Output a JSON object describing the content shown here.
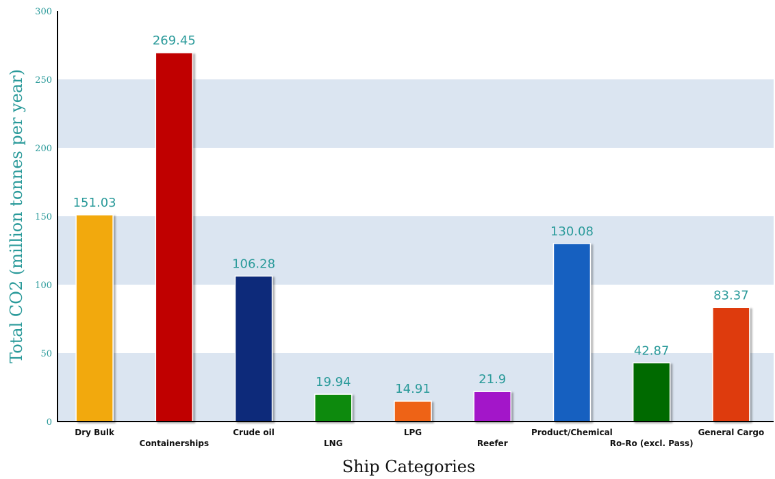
{
  "chart_data": {
    "type": "bar",
    "title": "",
    "xlabel": "Ship Categories",
    "ylabel": "Total CO2 (million tonnes per year)",
    "ylim": [
      0,
      300
    ],
    "yticks": [
      0,
      50,
      100,
      150,
      200,
      250,
      300
    ],
    "grid": "alternating horizontal bands",
    "legend": "none",
    "categories": [
      "Dry Bulk",
      "Containerships",
      "Crude oil",
      "LNG",
      "LPG",
      "Reefer",
      "Product/Chemical",
      "Ro-Ro (excl. Pass)",
      "General Cargo"
    ],
    "values": [
      151.03,
      269.45,
      106.28,
      19.94,
      14.91,
      21.9,
      130.08,
      42.87,
      83.37
    ],
    "value_labels": [
      "151.03",
      "269.45",
      "106.28",
      "19.94",
      "14.91",
      "21.9",
      "130.08",
      "42.87",
      "83.37"
    ],
    "colors": [
      "#f2a90f",
      "#c00000",
      "#0a2a7a",
      "#0b8a0b",
      "#ee6315",
      "#a313c9",
      "#1460c0",
      "#006a00",
      "#de3a0a"
    ],
    "band_color": "#dbe5f1"
  }
}
